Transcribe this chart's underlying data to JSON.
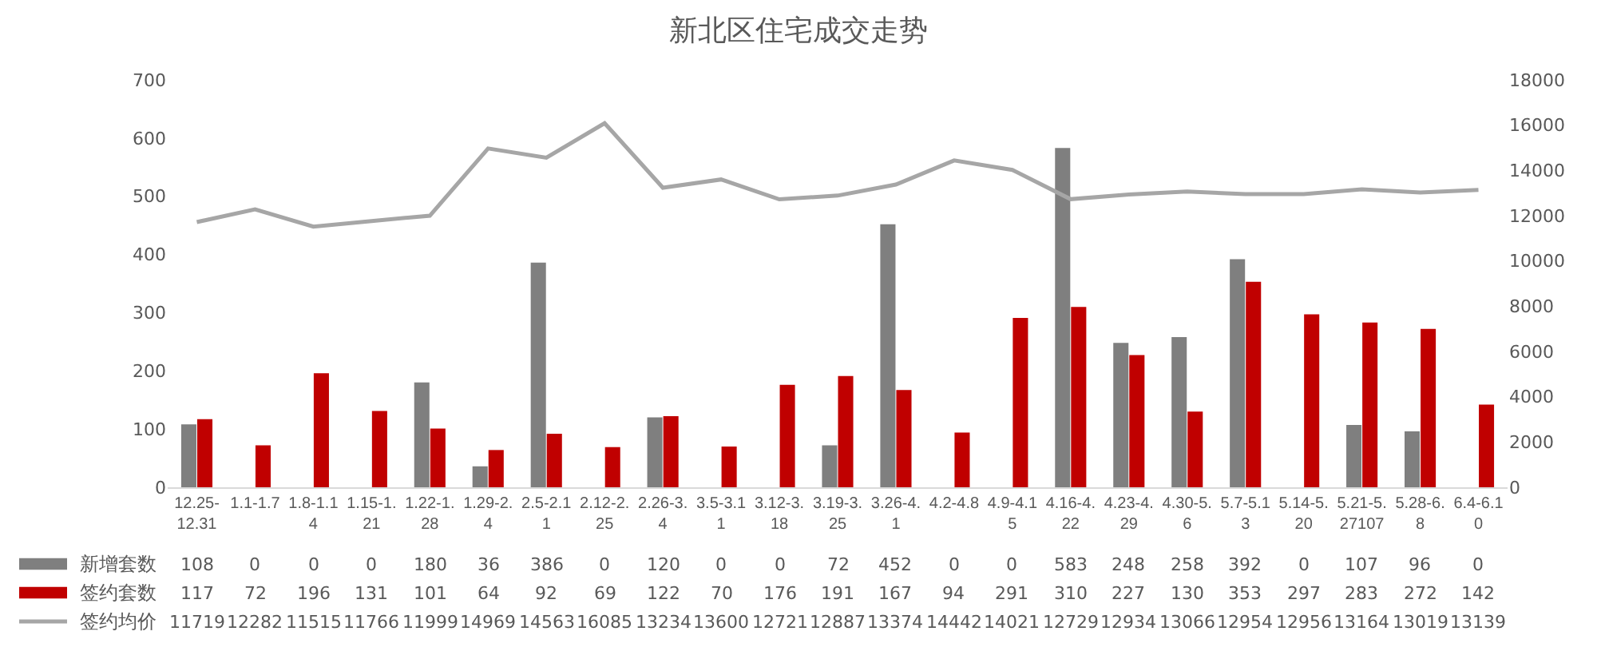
{
  "chart_data": {
    "type": "bar",
    "title": "新北区住宅成交走势",
    "categories": [
      "12.25-12.31",
      "1.1-1.7",
      "1.8-1.14",
      "1.15-1.21",
      "1.22-1.28",
      "1.29-2.4",
      "2.5-2.11",
      "2.12-2.25",
      "2.26-3.4",
      "3.5-3.11",
      "3.12-3.18",
      "3.19-3.25",
      "3.26-4.1",
      "4.2-4.8",
      "4.9-4.15",
      "4.16-4.22",
      "4.23-4.29",
      "4.30-5.6",
      "5.7-5.13",
      "5.14-5.20",
      "5.21-5.27107",
      "5.28-6.8",
      "6.4-6.10"
    ],
    "series": [
      {
        "name": "新增套数",
        "color": "#7f7f7f",
        "values": [
          108,
          0,
          0,
          0,
          180,
          36,
          386,
          0,
          120,
          0,
          0,
          72,
          452,
          0,
          0,
          583,
          248,
          258,
          392,
          0,
          107,
          96,
          0
        ]
      },
      {
        "name": "签约套数",
        "color": "#c00000",
        "values": [
          117,
          72,
          196,
          131,
          101,
          64,
          92,
          69,
          122,
          70,
          176,
          191,
          167,
          94,
          291,
          310,
          227,
          130,
          353,
          297,
          283,
          272,
          142
        ]
      },
      {
        "name": "签约均价",
        "type": "line",
        "axis": "y2",
        "color": "#a6a6a6",
        "values": [
          11719,
          12282,
          11515,
          11766,
          11999,
          14969,
          14563,
          16085,
          13234,
          13600,
          12721,
          12887,
          13374,
          14442,
          14021,
          12729,
          12934,
          13066,
          12954,
          12956,
          13164,
          13019,
          13139
        ]
      }
    ],
    "ylim": [
      0,
      700
    ],
    "yticks": [
      0,
      100,
      200,
      300,
      400,
      500,
      600,
      700
    ],
    "y2lim": [
      0,
      18000
    ],
    "y2ticks": [
      0,
      2000,
      4000,
      6000,
      8000,
      10000,
      12000,
      14000,
      16000,
      18000
    ],
    "data_labels": true,
    "legend": "bottom left",
    "marker": "none",
    "line_style": "solid"
  }
}
